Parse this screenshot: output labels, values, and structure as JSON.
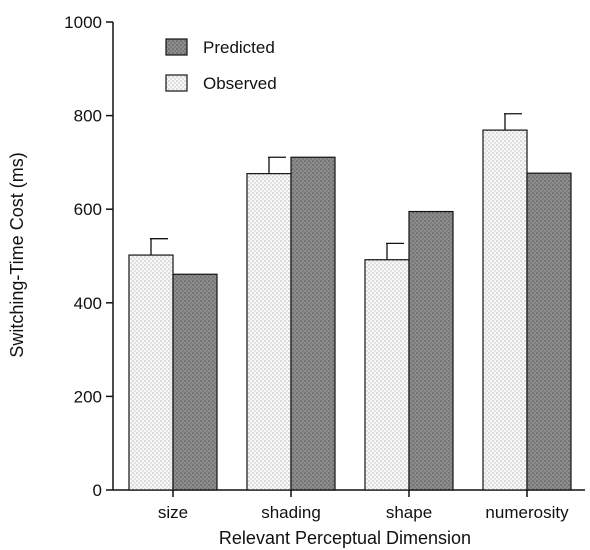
{
  "chart_data": {
    "type": "bar",
    "categories": [
      "size",
      "shading",
      "shape",
      "numerosity"
    ],
    "series": [
      {
        "name": "Observed",
        "values": [
          502,
          676,
          492,
          769
        ],
        "error": [
          35,
          35,
          35,
          35
        ],
        "color": "#f2f2f2",
        "pattern": "stipple-light"
      },
      {
        "name": "Predicted",
        "values": [
          461,
          711,
          595,
          677
        ],
        "color": "#8a8a8a",
        "pattern": "stipple-dark"
      }
    ],
    "xlabel": "Relevant Perceptual Dimension",
    "ylabel": "Switching-Time Cost (ms)",
    "ylim": [
      0,
      1000
    ],
    "yticks": [
      0,
      200,
      400,
      600,
      800,
      1000
    ],
    "legend": {
      "placement": "top-left",
      "order": [
        "Predicted",
        "Observed"
      ]
    },
    "grid": false
  }
}
